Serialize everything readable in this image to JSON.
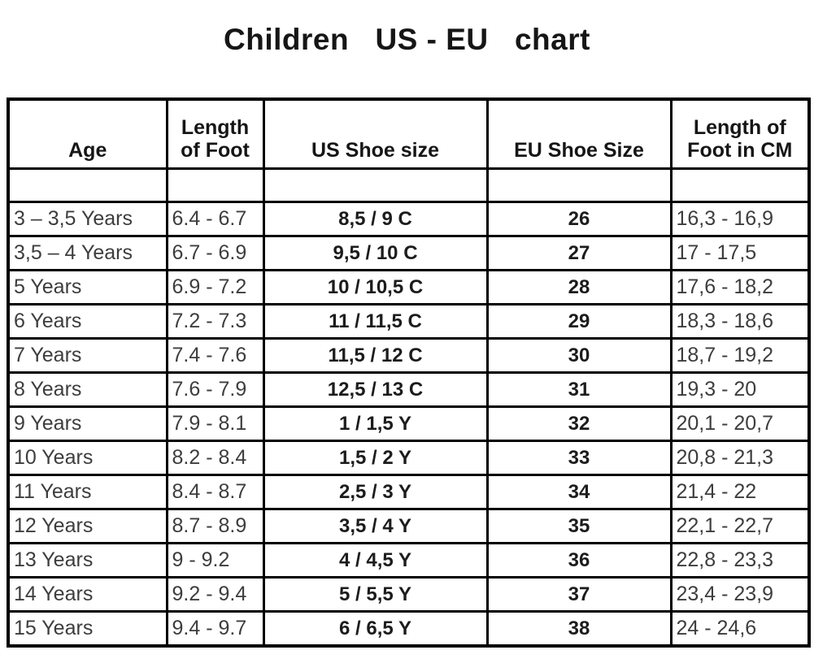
{
  "title": "Children   US - EU   chart",
  "table": {
    "headers_display": [
      "Age",
      "Length\nof Foot",
      "US Shoe size",
      "EU Shoe Size",
      "Length of\nFoot in CM"
    ]
  },
  "chart_data": {
    "type": "table",
    "title": "Children   US - EU   chart",
    "columns": [
      "Age",
      "Length of Foot",
      "US Shoe size",
      "EU Shoe Size",
      "Length of Foot in CM"
    ],
    "rows": [
      [
        "3 – 3,5 Years",
        "6.4 - 6.7",
        "8,5 / 9 C",
        "26",
        "16,3 - 16,9"
      ],
      [
        "3,5 – 4 Years",
        "6.7 - 6.9",
        "9,5 / 10 C",
        "27",
        "17 - 17,5"
      ],
      [
        "5 Years",
        "6.9 - 7.2",
        "10 / 10,5 C",
        "28",
        "17,6 - 18,2"
      ],
      [
        "6 Years",
        "7.2 - 7.3",
        "11 / 11,5 C",
        "29",
        "18,3 - 18,6"
      ],
      [
        "7 Years",
        "7.4 - 7.6",
        "11,5 / 12 C",
        "30",
        "18,7 - 19,2"
      ],
      [
        "8 Years",
        "7.6 - 7.9",
        "12,5 / 13 C",
        "31",
        "19,3 - 20"
      ],
      [
        "9 Years",
        "7.9 - 8.1",
        "1 / 1,5 Y",
        "32",
        "20,1 - 20,7"
      ],
      [
        "10 Years",
        "8.2 - 8.4",
        "1,5 / 2 Y",
        "33",
        "20,8 - 21,3"
      ],
      [
        "11 Years",
        "8.4 - 8.7",
        "2,5 / 3 Y",
        "34",
        "21,4 - 22"
      ],
      [
        "12 Years",
        "8.7 - 8.9",
        "3,5 / 4 Y",
        "35",
        "22,1 - 22,7"
      ],
      [
        "13 Years",
        "9 - 9.2",
        "4 / 4,5 Y",
        "36",
        "22,8 - 23,3"
      ],
      [
        "14 Years",
        "9.2 - 9.4",
        "5 / 5,5 Y",
        "37",
        "23,4 - 23,9"
      ],
      [
        "15 Years",
        "9.4 - 9.7",
        "6 / 6,5 Y",
        "38",
        "24 - 24,6"
      ]
    ]
  }
}
